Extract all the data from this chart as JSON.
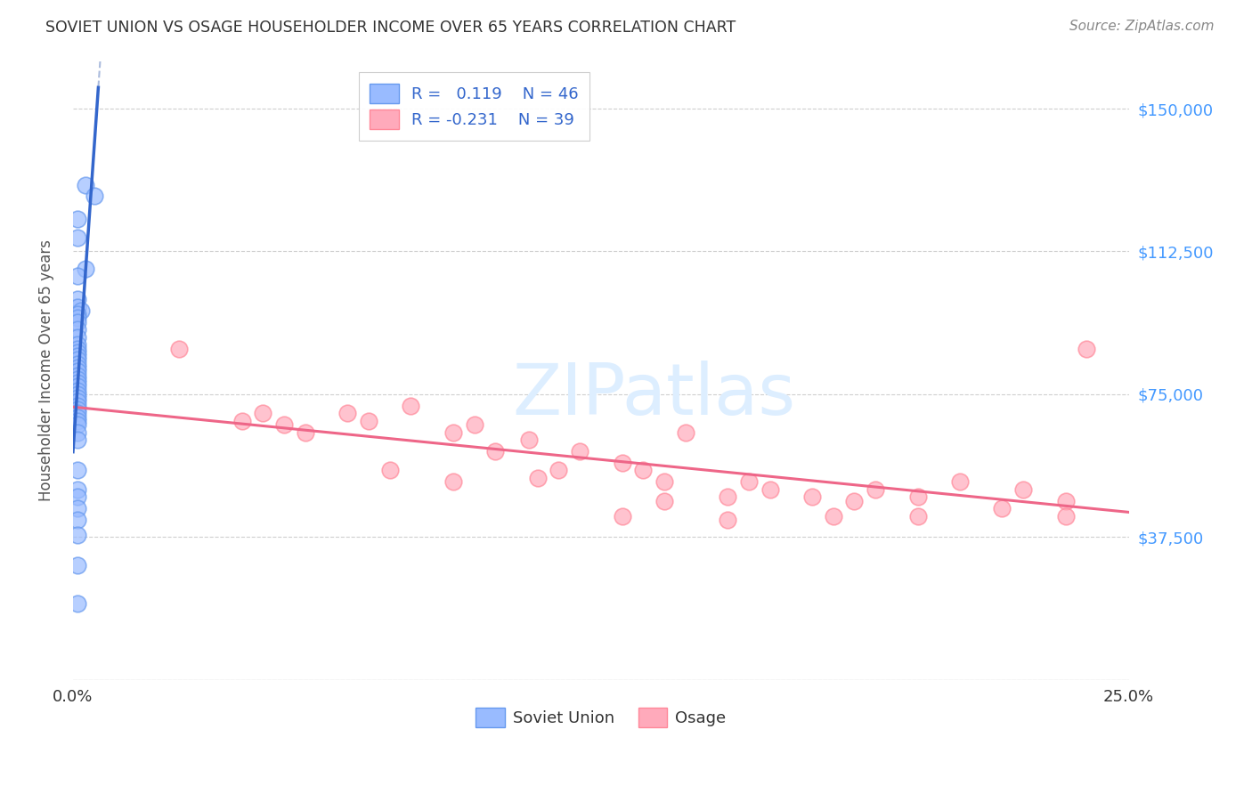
{
  "title": "SOVIET UNION VS OSAGE HOUSEHOLDER INCOME OVER 65 YEARS CORRELATION CHART",
  "source": "Source: ZipAtlas.com",
  "ylabel": "Householder Income Over 65 years",
  "xlim": [
    0.0,
    0.25
  ],
  "ylim": [
    0,
    162500
  ],
  "ytick_positions": [
    0,
    37500,
    75000,
    112500,
    150000
  ],
  "ytick_labels": [
    "",
    "$37,500",
    "$75,000",
    "$112,500",
    "$150,000"
  ],
  "soviet_R": 0.119,
  "soviet_N": 46,
  "osage_R": -0.231,
  "osage_N": 39,
  "soviet_color": "#99BBFF",
  "soviet_edge_color": "#6699EE",
  "osage_color": "#FFAABB",
  "osage_edge_color": "#FF8899",
  "soviet_line_color": "#3366CC",
  "soviet_dashed_color": "#AABBDD",
  "osage_line_color": "#EE6688",
  "background_color": "#FFFFFF",
  "grid_color": "#BBBBBB",
  "title_color": "#333333",
  "tick_label_color_right": "#4499FF",
  "watermark_color": "#DDEEFF",
  "soviet_x": [
    0.003,
    0.005,
    0.001,
    0.001,
    0.003,
    0.001,
    0.001,
    0.001,
    0.002,
    0.001,
    0.001,
    0.001,
    0.001,
    0.001,
    0.001,
    0.001,
    0.001,
    0.001,
    0.001,
    0.001,
    0.001,
    0.001,
    0.001,
    0.001,
    0.001,
    0.001,
    0.001,
    0.001,
    0.001,
    0.001,
    0.001,
    0.001,
    0.001,
    0.001,
    0.001,
    0.001,
    0.001,
    0.001,
    0.001,
    0.001,
    0.001,
    0.001,
    0.001,
    0.001,
    0.001,
    0.001
  ],
  "soviet_y": [
    130000,
    127000,
    121000,
    116000,
    108000,
    106000,
    100000,
    98000,
    97000,
    96000,
    95000,
    94000,
    92000,
    90000,
    88000,
    87000,
    86000,
    85000,
    84000,
    83000,
    82000,
    81000,
    80000,
    79000,
    78000,
    77000,
    76000,
    75000,
    74000,
    73000,
    72000,
    71000,
    70000,
    69000,
    68000,
    67000,
    65000,
    63000,
    55000,
    50000,
    48000,
    45000,
    42000,
    38000,
    30000,
    20000
  ],
  "osage_x": [
    0.025,
    0.04,
    0.045,
    0.05,
    0.055,
    0.065,
    0.07,
    0.08,
    0.09,
    0.095,
    0.1,
    0.108,
    0.115,
    0.12,
    0.13,
    0.135,
    0.14,
    0.145,
    0.155,
    0.16,
    0.165,
    0.175,
    0.185,
    0.19,
    0.2,
    0.21,
    0.22,
    0.225,
    0.235,
    0.24,
    0.075,
    0.09,
    0.11,
    0.13,
    0.14,
    0.155,
    0.18,
    0.2,
    0.235
  ],
  "osage_y": [
    87000,
    68000,
    70000,
    67000,
    65000,
    70000,
    68000,
    72000,
    65000,
    67000,
    60000,
    63000,
    55000,
    60000,
    57000,
    55000,
    52000,
    65000,
    48000,
    52000,
    50000,
    48000,
    47000,
    50000,
    48000,
    52000,
    45000,
    50000,
    47000,
    87000,
    55000,
    52000,
    53000,
    43000,
    47000,
    42000,
    43000,
    43000,
    43000
  ]
}
